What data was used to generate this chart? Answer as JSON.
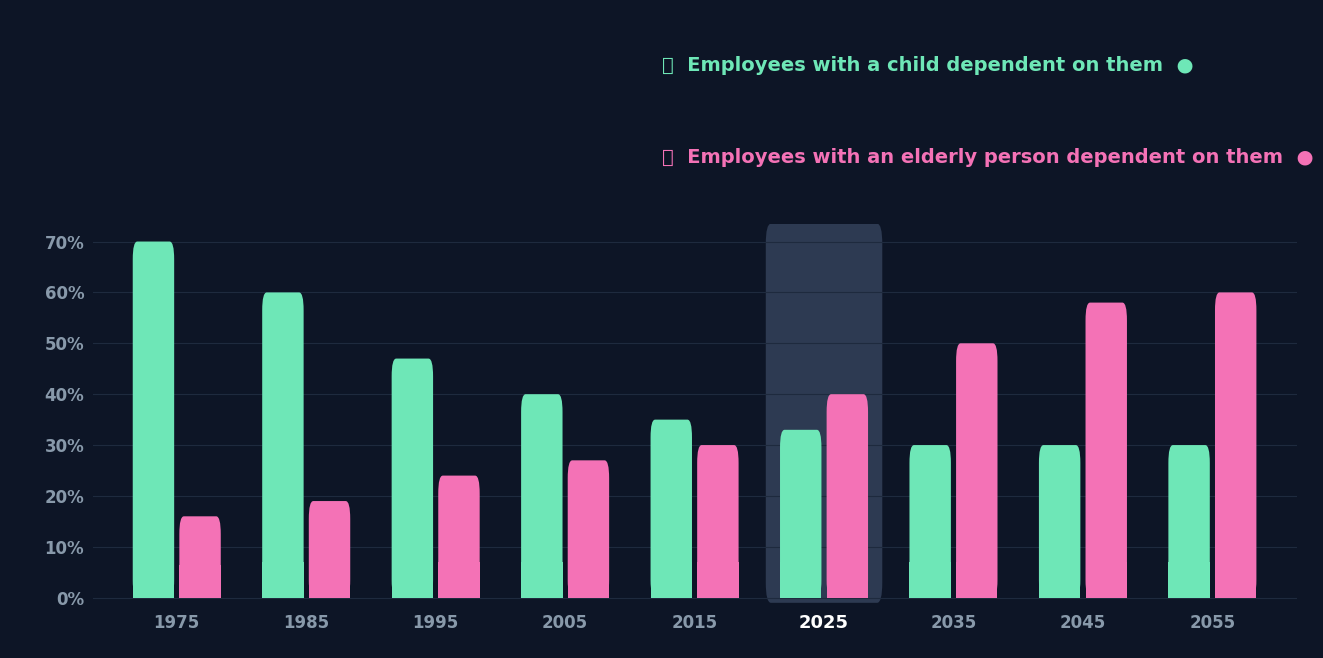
{
  "years": [
    1975,
    1985,
    1995,
    2005,
    2015,
    2025,
    2035,
    2045,
    2055
  ],
  "child_values": [
    0.7,
    0.6,
    0.47,
    0.4,
    0.35,
    0.33,
    0.3,
    0.3,
    0.3
  ],
  "elder_values": [
    0.16,
    0.19,
    0.24,
    0.27,
    0.3,
    0.4,
    0.5,
    0.58,
    0.6
  ],
  "child_color": "#6EE7B7",
  "elder_color": "#F472B6",
  "background_color": "#0d1526",
  "highlight_background": "#2d3a52",
  "highlight_year": 2025,
  "child_label": "Employees with a child dependent on them",
  "elder_label": "Employees with an elderly person dependent on them",
  "child_text_color": "#6EE7B7",
  "elder_text_color": "#F472B6",
  "yticks": [
    0.0,
    0.1,
    0.2,
    0.3,
    0.4,
    0.5,
    0.6,
    0.7
  ],
  "ytick_labels": [
    "0%",
    "10%",
    "20%",
    "30%",
    "40%",
    "50%",
    "60%",
    "70%"
  ],
  "bar_width": 0.32,
  "bar_gap": 0.04,
  "tick_color": "#8899aa",
  "grid_color": "#1e2a3e",
  "child_emoji": "👶",
  "elder_emoji": "👴"
}
